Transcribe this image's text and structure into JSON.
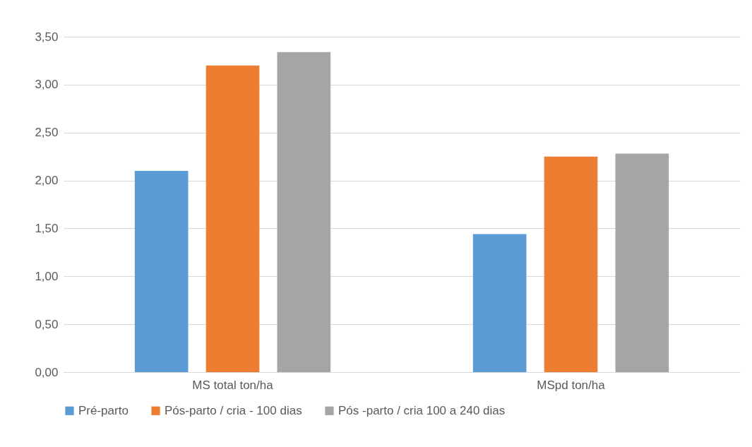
{
  "chart_data": {
    "type": "bar",
    "categories": [
      "MS total ton/ha",
      "MSpd ton/ha"
    ],
    "series": [
      {
        "name": "Pré-parto",
        "color": "#5b9bd5",
        "values": [
          2.1,
          1.44
        ]
      },
      {
        "name": "Pós-parto / cria - 100 dias",
        "color": "#ed7d31",
        "values": [
          3.2,
          2.25
        ]
      },
      {
        "name": "Pós -parto / cria 100 a 240 dias",
        "color": "#a5a5a5",
        "values": [
          3.34,
          2.28
        ]
      }
    ],
    "ylim": [
      0,
      3.5
    ],
    "yticks": [
      {
        "value": 0,
        "label": "0,00"
      },
      {
        "value": 0.5,
        "label": "0,50"
      },
      {
        "value": 1,
        "label": "1,00"
      },
      {
        "value": 1.5,
        "label": "1,50"
      },
      {
        "value": 2,
        "label": "2,00"
      },
      {
        "value": 2.5,
        "label": "2,50"
      },
      {
        "value": 3,
        "label": "3,00"
      },
      {
        "value": 3.5,
        "label": "3,50"
      }
    ],
    "grid": "y",
    "legend": "bottom"
  }
}
